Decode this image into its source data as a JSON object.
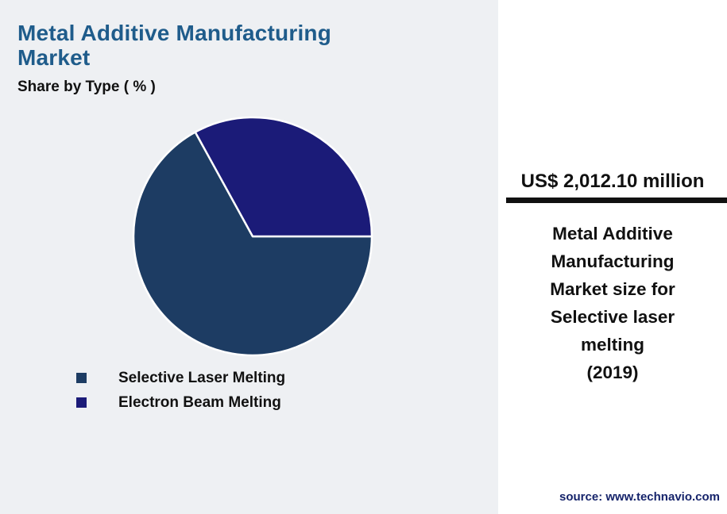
{
  "theme": {
    "background": "#eef0f3",
    "panel_background": "#ffffff",
    "title_color": "#1f5c8b",
    "text_color": "#111111",
    "divider_color": "#111111",
    "source_color": "#16246b"
  },
  "header": {
    "title_line1": "Metal Additive Manufacturing",
    "title_line2": "Market",
    "subtitle": "Share by Type ( % )"
  },
  "chart_data": {
    "type": "pie",
    "title": "Metal Additive Manufacturing Market",
    "subtitle": "Share by Type ( % )",
    "categories": [
      "Selective Laser Melting",
      "Electron Beam Melting"
    ],
    "values": [
      67,
      33
    ],
    "colors": [
      "#1d3c63",
      "#1b1b78"
    ],
    "start_angle_deg": 0,
    "direction": "clockwise",
    "legend_position": "bottom-left",
    "data_labels_shown": false
  },
  "side_panel": {
    "value": "US$ 2,012.10 million",
    "description": "Metal Additive Manufacturing Market size for Selective laser melting",
    "year": "(2019)"
  },
  "footer": {
    "source": "source: www.technavio.com"
  }
}
